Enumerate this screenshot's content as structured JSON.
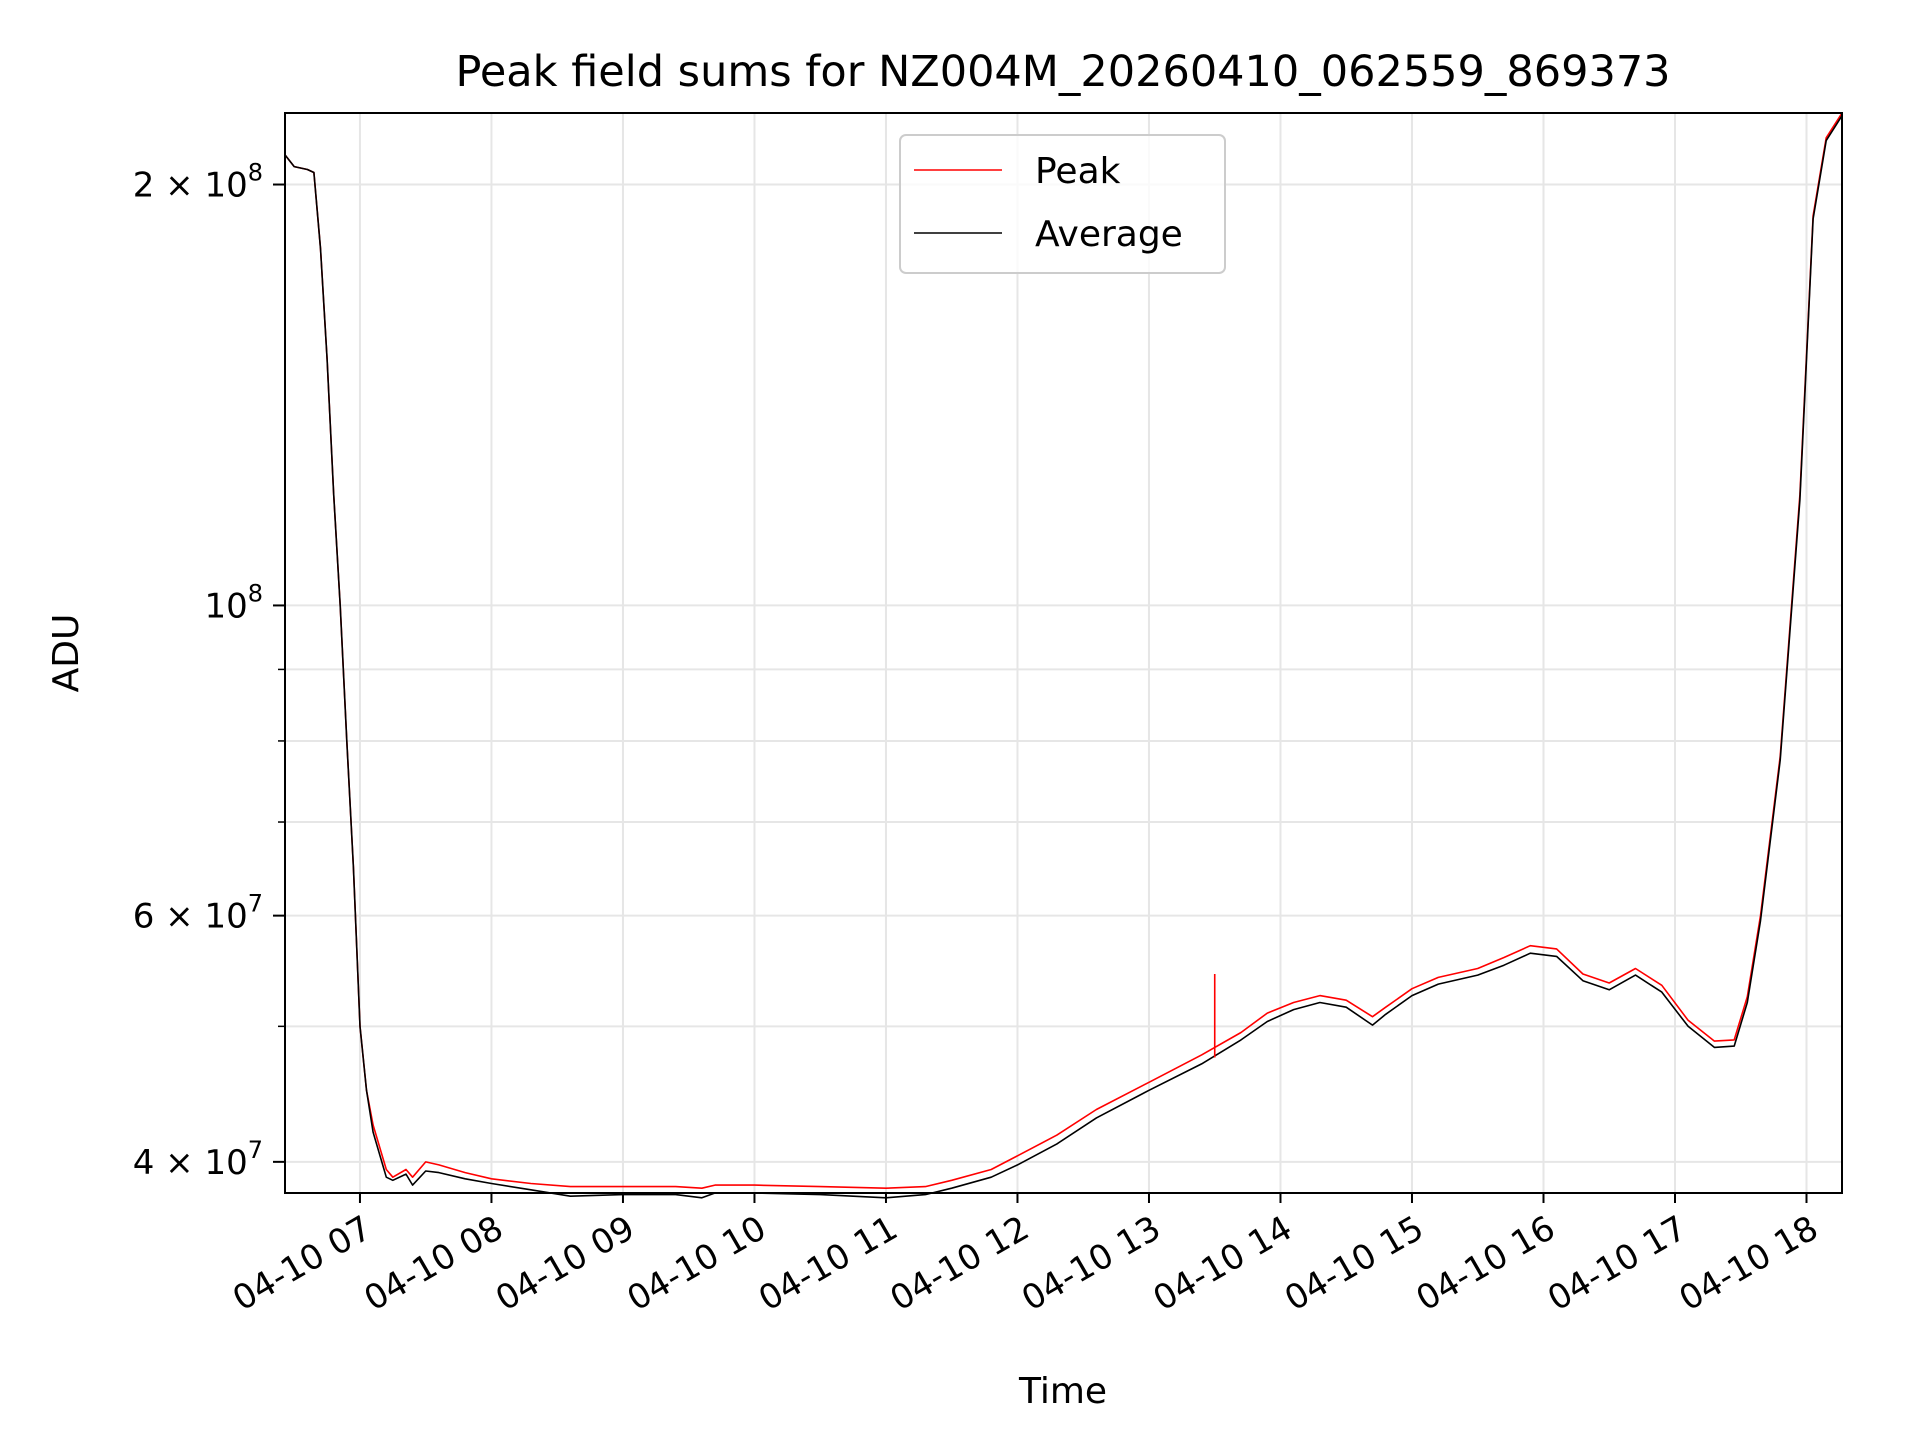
{
  "chart_data": {
    "type": "line",
    "title": "Peak field sums for NZ004M_20260410_062559_869373",
    "xlabel": "Time",
    "ylabel": "ADU",
    "yscale": "log",
    "ylim": [
      38000000,
      225000000
    ],
    "xlim": [
      6.43,
      18.27
    ],
    "grid": true,
    "legend_position": "top-center",
    "x_ticks": [
      {
        "value": 7,
        "label": "04-10 07"
      },
      {
        "value": 8,
        "label": "04-10 08"
      },
      {
        "value": 9,
        "label": "04-10 09"
      },
      {
        "value": 10,
        "label": "04-10 10"
      },
      {
        "value": 11,
        "label": "04-10 11"
      },
      {
        "value": 12,
        "label": "04-10 12"
      },
      {
        "value": 13,
        "label": "04-10 13"
      },
      {
        "value": 14,
        "label": "04-10 14"
      },
      {
        "value": 15,
        "label": "04-10 15"
      },
      {
        "value": 16,
        "label": "04-10 16"
      },
      {
        "value": 17,
        "label": "04-10 17"
      },
      {
        "value": 18,
        "label": "04-10 18"
      }
    ],
    "y_ticks": [
      {
        "value": 40000000,
        "mantissa": "4 × 10",
        "exponent": "7"
      },
      {
        "value": 60000000,
        "mantissa": "6 × 10",
        "exponent": "7"
      },
      {
        "value": 100000000,
        "mantissa": "10",
        "exponent": "8"
      },
      {
        "value": 200000000,
        "mantissa": "2 × 10",
        "exponent": "8"
      }
    ],
    "y_minor_ticks": [
      50000000,
      70000000,
      80000000,
      90000000
    ],
    "x_unit": "hour of 2026-04-10 (decimal)",
    "series": [
      {
        "name": "Peak",
        "color": "#ff0000",
        "x": [
          6.43,
          6.5,
          6.6,
          6.65,
          6.7,
          6.75,
          6.8,
          6.85,
          6.9,
          6.95,
          7.0,
          7.05,
          7.1,
          7.2,
          7.25,
          7.35,
          7.4,
          7.5,
          7.6,
          7.8,
          8.0,
          8.3,
          8.6,
          9.0,
          9.4,
          9.6,
          9.7,
          10.0,
          10.5,
          11.0,
          11.3,
          11.5,
          11.8,
          12.0,
          12.3,
          12.6,
          13.0,
          13.4,
          13.7,
          13.9,
          14.1,
          14.3,
          14.5,
          14.7,
          14.8,
          15.0,
          15.2,
          15.5,
          15.7,
          15.9,
          16.1,
          16.3,
          16.5,
          16.7,
          16.9,
          17.1,
          17.3,
          17.45,
          17.55,
          17.65,
          17.8,
          17.95,
          18.05,
          18.15,
          18.27
        ],
        "y": [
          210000000,
          206000000,
          205000000,
          204000000,
          180000000,
          150000000,
          120000000,
          100000000,
          80000000,
          65000000,
          50000000,
          45000000,
          42500000,
          39500000,
          39000000,
          39500000,
          39000000,
          40000000,
          39800000,
          39300000,
          38900000,
          38600000,
          38400000,
          38400000,
          38400000,
          38300000,
          38500000,
          38500000,
          38400000,
          38300000,
          38400000,
          38800000,
          39500000,
          40400000,
          41800000,
          43600000,
          45600000,
          47700000,
          49500000,
          51100000,
          52000000,
          52600000,
          52200000,
          50800000,
          51600000,
          53200000,
          54200000,
          55000000,
          56000000,
          57100000,
          56800000,
          54500000,
          53700000,
          55000000,
          53500000,
          50500000,
          48800000,
          48900000,
          52500000,
          60000000,
          78000000,
          120000000,
          190000000,
          216000000,
          225000000
        ]
      },
      {
        "name": "Average",
        "color": "#000000",
        "x": [
          6.43,
          6.5,
          6.6,
          6.65,
          6.7,
          6.75,
          6.8,
          6.85,
          6.9,
          6.95,
          7.0,
          7.05,
          7.1,
          7.2,
          7.25,
          7.35,
          7.4,
          7.5,
          7.6,
          7.8,
          8.0,
          8.3,
          8.6,
          9.0,
          9.4,
          9.6,
          9.7,
          10.0,
          10.5,
          11.0,
          11.3,
          11.5,
          11.8,
          12.0,
          12.3,
          12.6,
          13.0,
          13.4,
          13.7,
          13.9,
          14.1,
          14.3,
          14.5,
          14.7,
          14.8,
          15.0,
          15.2,
          15.5,
          15.7,
          15.9,
          16.1,
          16.3,
          16.5,
          16.7,
          16.9,
          17.1,
          17.3,
          17.45,
          17.55,
          17.65,
          17.8,
          17.95,
          18.05,
          18.15,
          18.27
        ],
        "y": [
          210000000,
          206000000,
          205000000,
          204000000,
          180000000,
          150000000,
          120000000,
          100000000,
          80000000,
          65000000,
          50000000,
          45000000,
          42000000,
          39000000,
          38800000,
          39200000,
          38500000,
          39400000,
          39300000,
          38900000,
          38600000,
          38200000,
          37800000,
          37900000,
          37900000,
          37700000,
          38000000,
          38000000,
          37900000,
          37700000,
          37900000,
          38300000,
          39000000,
          39800000,
          41200000,
          43000000,
          45000000,
          47000000,
          48900000,
          50400000,
          51400000,
          52000000,
          51600000,
          50100000,
          51000000,
          52600000,
          53600000,
          54400000,
          55300000,
          56400000,
          56100000,
          53900000,
          53100000,
          54400000,
          52900000,
          50000000,
          48300000,
          48400000,
          52000000,
          59500000,
          77500000,
          119000000,
          189000000,
          215000000,
          224000000
        ]
      }
    ],
    "annotations": [
      {
        "type": "spike",
        "series": "Peak",
        "x": 13.5,
        "y_from": 47500000,
        "y_to": 54500000
      }
    ]
  }
}
